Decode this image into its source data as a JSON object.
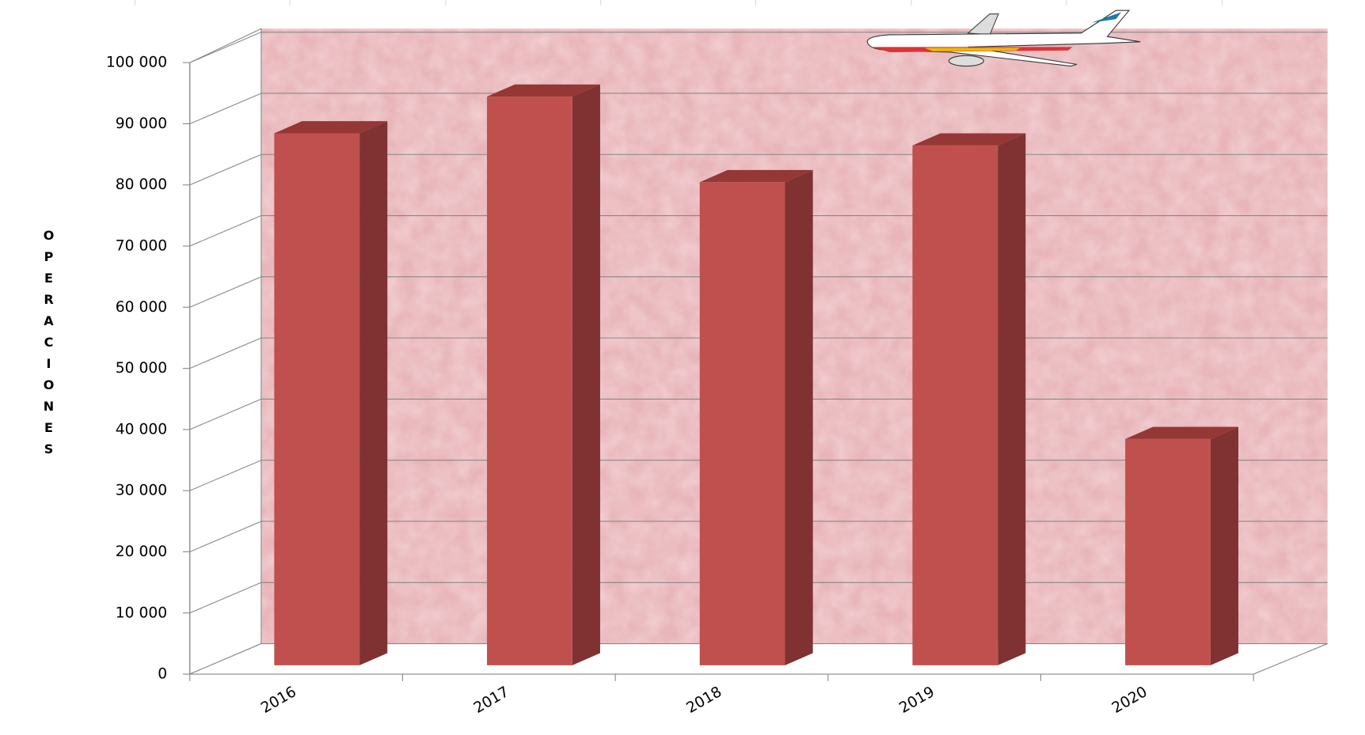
{
  "chart_data": {
    "type": "bar3d",
    "y_axis_label": "OPERACIONES",
    "categories": [
      "2016",
      "2017",
      "2018",
      "2019",
      "2020"
    ],
    "values": [
      87000,
      93000,
      79000,
      85000,
      37000
    ],
    "color": "#c0504d",
    "ylim": [
      0,
      100000
    ],
    "yticks": [
      0,
      {
        "value": 10000,
        "label": "10 000"
      },
      {
        "value": 20000,
        "label": "20 000"
      },
      {
        "value": 30000,
        "label": "30 000"
      },
      {
        "value": 40000,
        "label": "40 000"
      },
      {
        "value": 50000,
        "label": "50 000"
      },
      {
        "value": 60000,
        "label": "60 000"
      },
      {
        "value": 70000,
        "label": "70 000"
      },
      {
        "value": 80000,
        "label": "80 000"
      },
      {
        "value": 90000,
        "label": "90 000"
      },
      {
        "value": 100000,
        "label": "100 000"
      }
    ],
    "grid": true
  }
}
